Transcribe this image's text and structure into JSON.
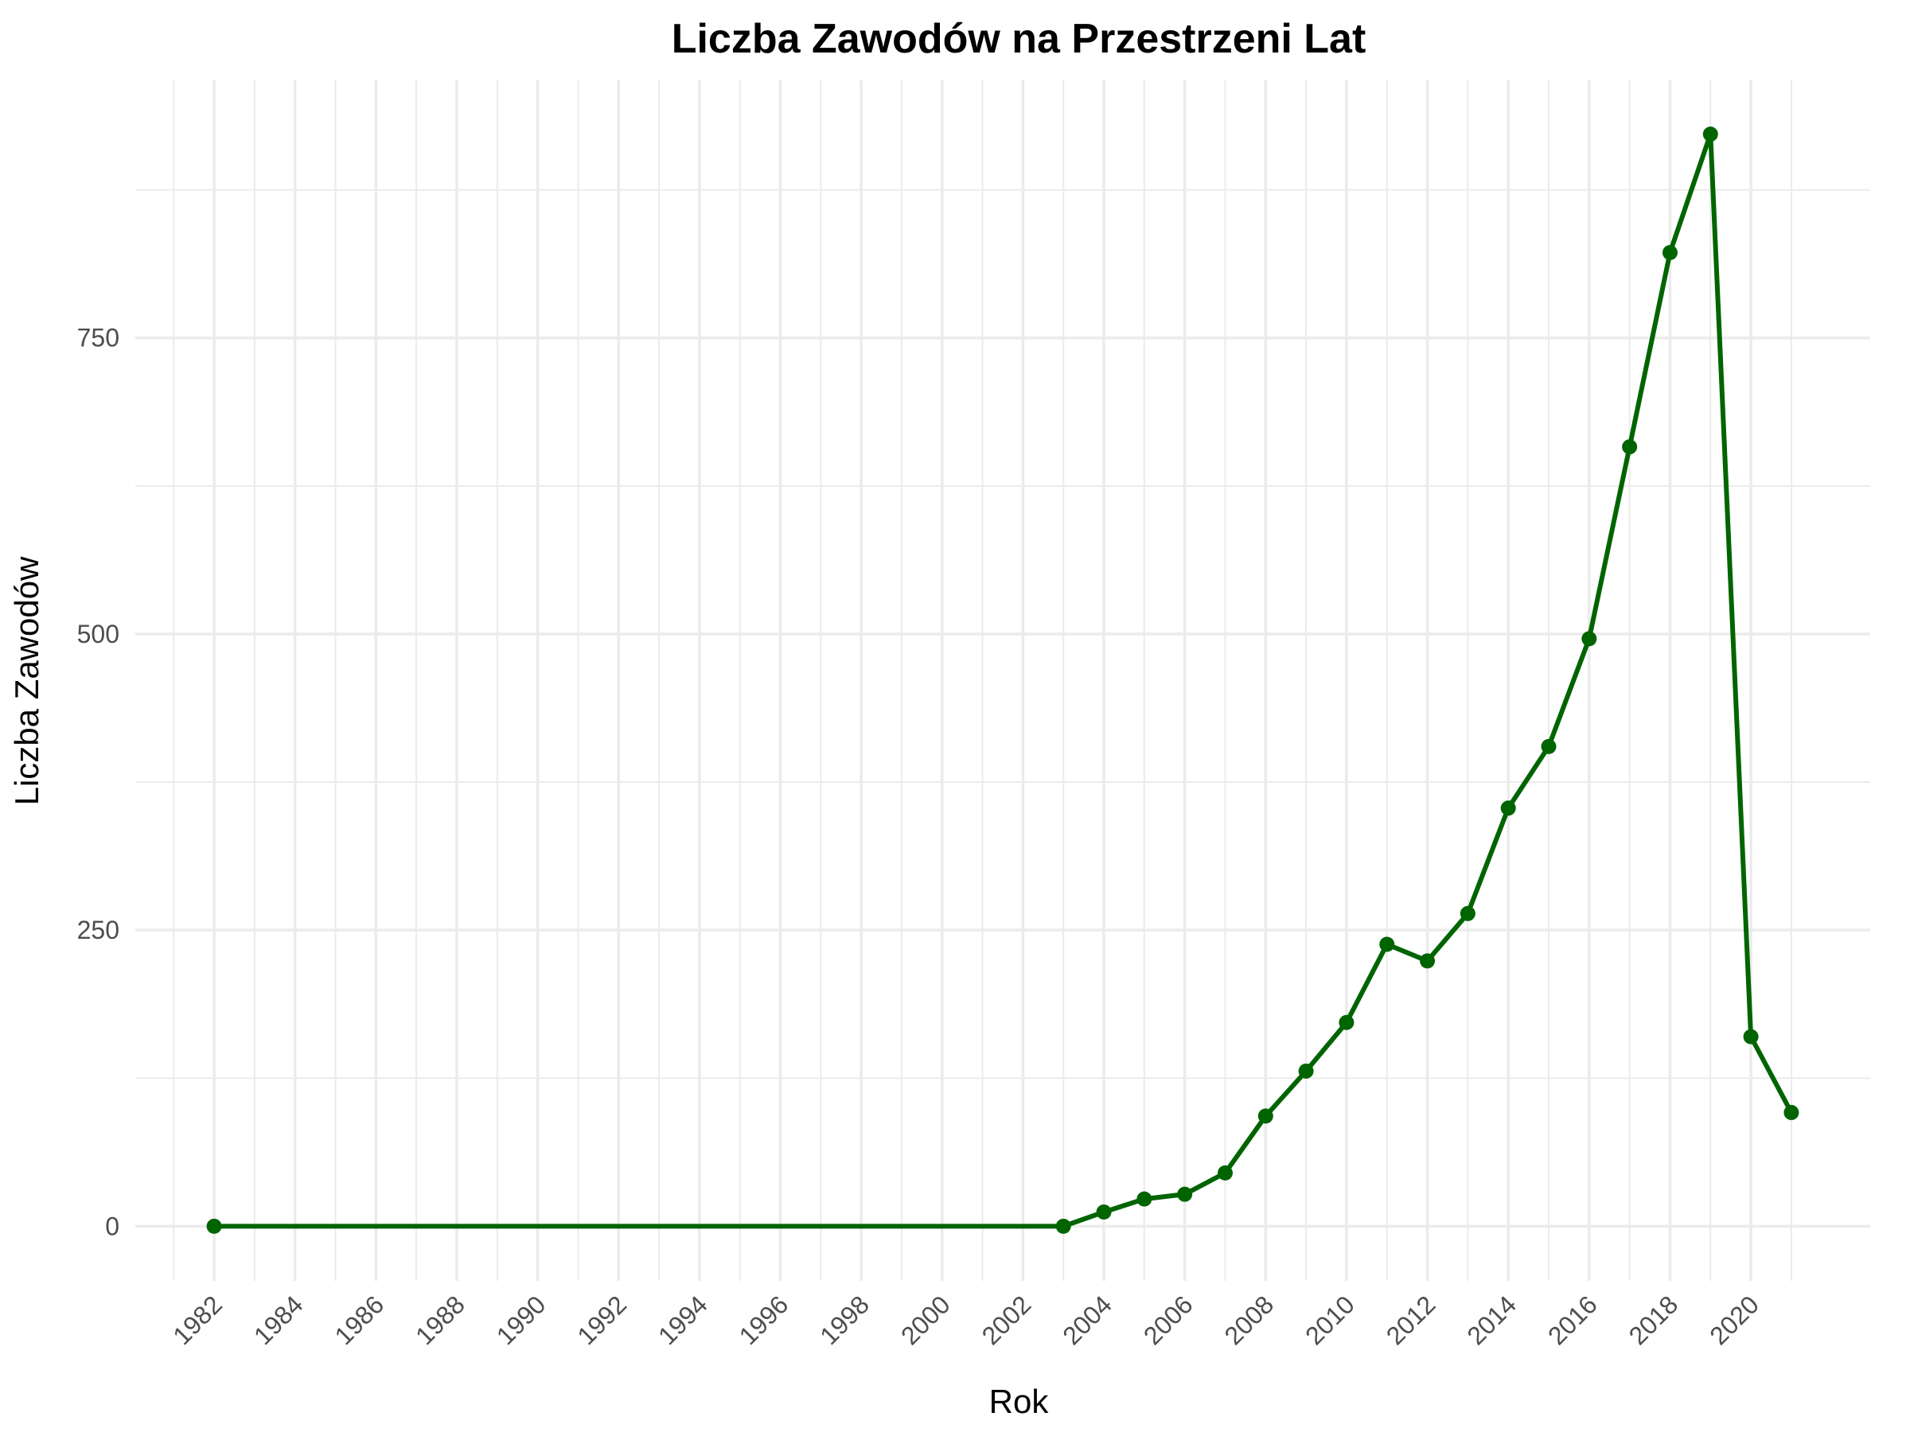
{
  "chart_data": {
    "type": "line",
    "title": "Liczba Zawodów na Przestrzeni Lat",
    "xlabel": "Rok",
    "ylabel": "Liczba Zawodów",
    "x": [
      1982,
      2003,
      2004,
      2005,
      2006,
      2007,
      2008,
      2009,
      2010,
      2011,
      2012,
      2013,
      2014,
      2015,
      2016,
      2017,
      2018,
      2019,
      2020,
      2021
    ],
    "series": [
      {
        "values": [
          0,
          0,
          12,
          23,
          27,
          45,
          93,
          131,
          172,
          238,
          224,
          264,
          353,
          405,
          496,
          658,
          822,
          922,
          160,
          96
        ]
      }
    ],
    "xticks": [
      "1982",
      "1984",
      "1986",
      "1988",
      "1990",
      "1992",
      "1994",
      "1996",
      "1998",
      "2000",
      "2002",
      "2004",
      "2006",
      "2008",
      "2010",
      "2012",
      "2014",
      "2016",
      "2018",
      "2020"
    ],
    "yticks": [
      "0",
      "250",
      "500",
      "750"
    ],
    "xlim": [
      1980.05,
      2022.95
    ],
    "ylim": [
      -46.1,
      968.1
    ],
    "grid": true,
    "legend": "none",
    "line_color": "#006400",
    "grid_color": "#ebebeb"
  }
}
